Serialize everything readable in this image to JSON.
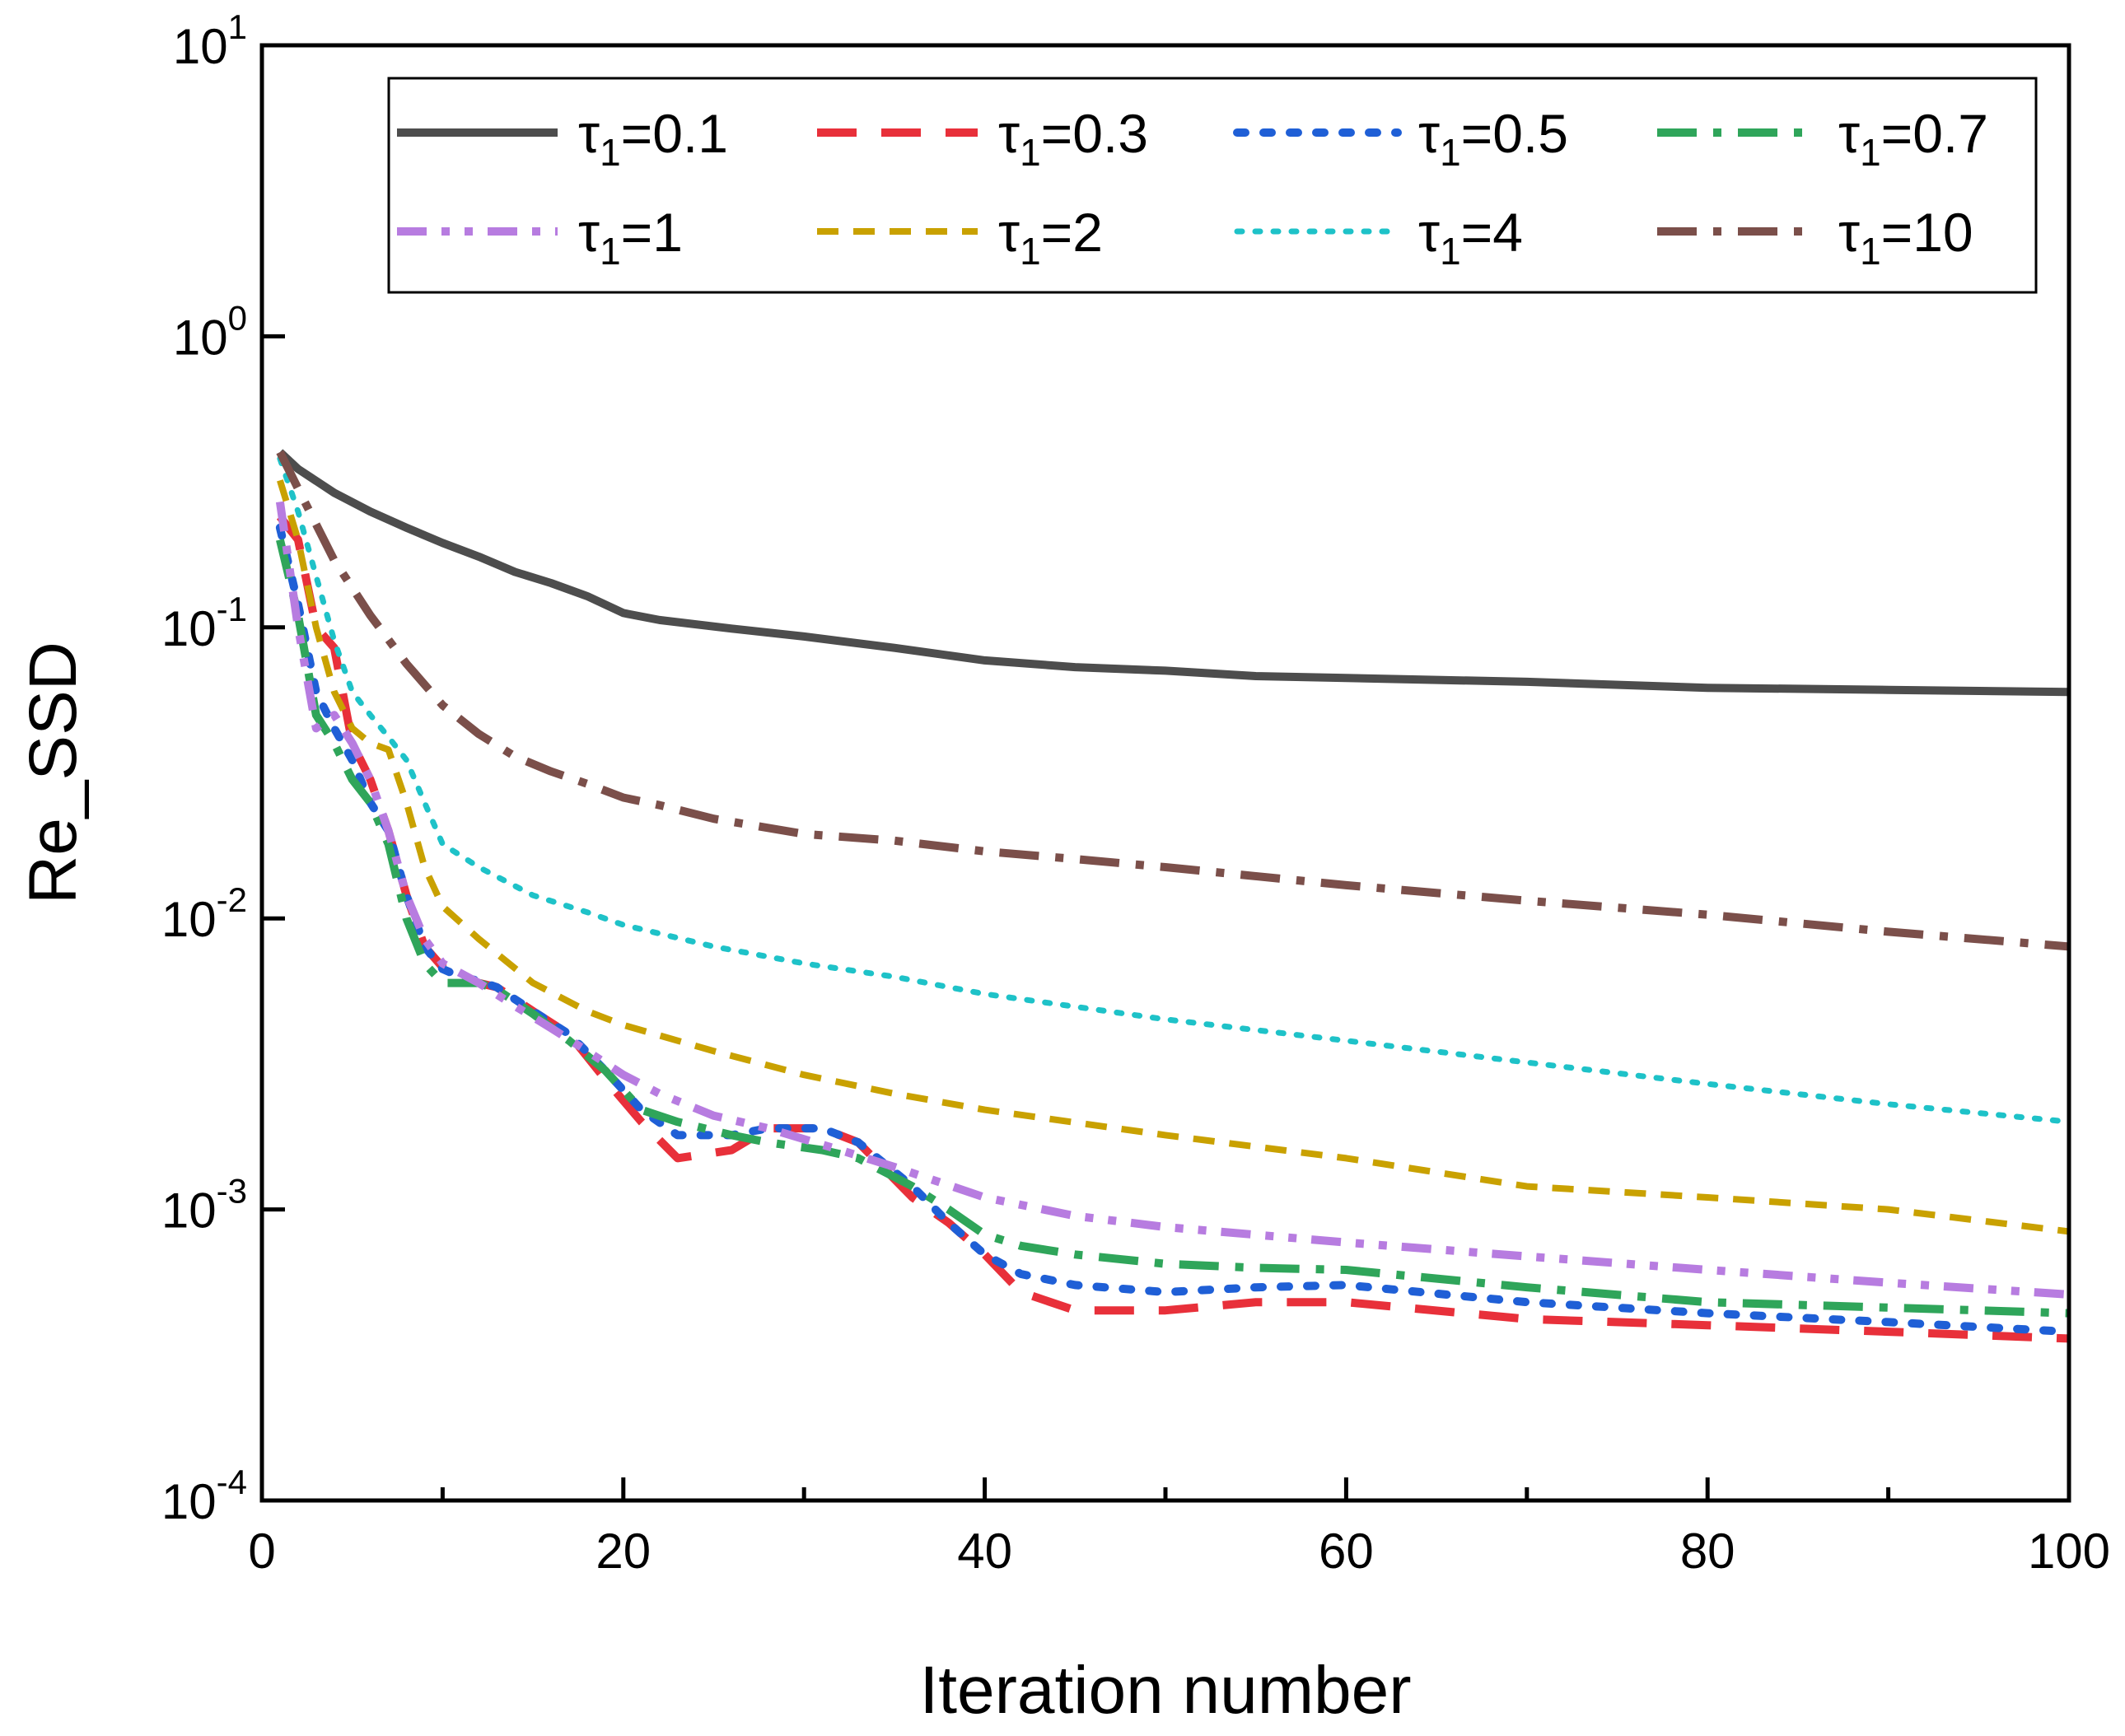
{
  "chart_data": {
    "type": "line",
    "title": "",
    "xlabel": "Iteration number",
    "ylabel": "Re_SSD",
    "xlim": [
      0,
      100
    ],
    "ylim": [
      0.0001,
      10
    ],
    "yscale": "log",
    "xticks": [
      0,
      20,
      40,
      60,
      80,
      100
    ],
    "xtick_labels": [
      "0",
      "20",
      "40",
      "60",
      "80",
      "100"
    ],
    "yticks": [
      {
        "value": 10,
        "base": "10",
        "exp": "1"
      },
      {
        "value": 1,
        "base": "10",
        "exp": "0"
      },
      {
        "value": 0.1,
        "base": "10",
        "exp": "-1"
      },
      {
        "value": 0.01,
        "base": "10",
        "exp": "-2"
      },
      {
        "value": 0.001,
        "base": "10",
        "exp": "-3"
      },
      {
        "value": 0.0001,
        "base": "10",
        "exp": "-4"
      }
    ],
    "legend": {
      "position": "top",
      "columns": 4,
      "symbol": "τ",
      "subscript": "1"
    },
    "series": [
      {
        "name": "τ1=0.1",
        "value_label": "=0.1",
        "color": "#4d4d4d",
        "style": "solid",
        "x": [
          1,
          2,
          4,
          6,
          8,
          10,
          12,
          14,
          16,
          18,
          20,
          22,
          26,
          30,
          35,
          40,
          45,
          50,
          55,
          60,
          70,
          80,
          90,
          100
        ],
        "y": [
          0.4,
          0.35,
          0.29,
          0.25,
          0.22,
          0.195,
          0.175,
          0.155,
          0.142,
          0.128,
          0.112,
          0.106,
          0.099,
          0.093,
          0.085,
          0.077,
          0.073,
          0.071,
          0.068,
          0.067,
          0.065,
          0.062,
          0.061,
          0.06
        ]
      },
      {
        "name": "τ1=0.3",
        "value_label": "=0.3",
        "color": "#e8303a",
        "style": "dash",
        "x": [
          1,
          2,
          3,
          4,
          5,
          6,
          7,
          8,
          9,
          10,
          11,
          12,
          13,
          15,
          17,
          19,
          21,
          23,
          26,
          28,
          31,
          33,
          36,
          38,
          40,
          42,
          45,
          50,
          55,
          60,
          70,
          80,
          90,
          100
        ],
        "y": [
          0.24,
          0.2,
          0.1,
          0.085,
          0.04,
          0.03,
          0.02,
          0.012,
          0.008,
          0.0068,
          0.0062,
          0.006,
          0.0058,
          0.0048,
          0.004,
          0.0028,
          0.002,
          0.0015,
          0.0016,
          0.0019,
          0.0019,
          0.0017,
          0.0011,
          0.0009,
          0.0007,
          0.00052,
          0.00045,
          0.00045,
          0.00048,
          0.00048,
          0.00042,
          0.0004,
          0.00038,
          0.00036
        ]
      },
      {
        "name": "τ1=0.5",
        "value_label": "=0.5",
        "color": "#1f5fd6",
        "style": "dot",
        "x": [
          1,
          2,
          3,
          4,
          5,
          6,
          7,
          8,
          9,
          10,
          11,
          12,
          13,
          15,
          17,
          19,
          21,
          23,
          26,
          28,
          31,
          33,
          36,
          38,
          40,
          42,
          45,
          50,
          55,
          60,
          70,
          80,
          90,
          100
        ],
        "y": [
          0.22,
          0.12,
          0.06,
          0.045,
          0.035,
          0.025,
          0.02,
          0.012,
          0.008,
          0.0067,
          0.0063,
          0.0061,
          0.0058,
          0.0048,
          0.004,
          0.003,
          0.0022,
          0.0018,
          0.0018,
          0.0019,
          0.0019,
          0.0017,
          0.0012,
          0.0009,
          0.0007,
          0.0006,
          0.00055,
          0.00052,
          0.00054,
          0.00055,
          0.00048,
          0.00044,
          0.00041,
          0.00038
        ]
      },
      {
        "name": "τ1=0.7",
        "value_label": "=0.7",
        "color": "#2fa55a",
        "style": "dashdot",
        "x": [
          1,
          2,
          3,
          4,
          5,
          6,
          7,
          8,
          9,
          10,
          11,
          12,
          13,
          15,
          17,
          19,
          21,
          23,
          26,
          28,
          31,
          33,
          36,
          38,
          40,
          42,
          45,
          50,
          55,
          60,
          70,
          80,
          90,
          100
        ],
        "y": [
          0.2,
          0.11,
          0.05,
          0.04,
          0.03,
          0.025,
          0.018,
          0.01,
          0.007,
          0.006,
          0.006,
          0.006,
          0.0057,
          0.0047,
          0.0038,
          0.003,
          0.0022,
          0.002,
          0.0018,
          0.0017,
          0.0016,
          0.0015,
          0.0012,
          0.001,
          0.00082,
          0.00075,
          0.0007,
          0.00065,
          0.00063,
          0.00062,
          0.00054,
          0.00048,
          0.00046,
          0.00044
        ]
      },
      {
        "name": "τ1=1",
        "value_label": "=1",
        "color": "#b77ce0",
        "style": "dashdotdot",
        "x": [
          1,
          2,
          3,
          4,
          5,
          6,
          7,
          8,
          9,
          10,
          12,
          14,
          16,
          18,
          20,
          22,
          25,
          28,
          32,
          35,
          40,
          45,
          50,
          60,
          70,
          80,
          90,
          100
        ],
        "y": [
          0.27,
          0.1,
          0.045,
          0.05,
          0.04,
          0.03,
          0.02,
          0.012,
          0.0085,
          0.007,
          0.006,
          0.005,
          0.0042,
          0.0035,
          0.0029,
          0.0025,
          0.0021,
          0.0019,
          0.0016,
          0.0014,
          0.0011,
          0.00095,
          0.00087,
          0.00077,
          0.00069,
          0.00062,
          0.00056,
          0.00051
        ]
      },
      {
        "name": "τ1=2",
        "value_label": "=2",
        "color": "#c9a100",
        "style": "shortdash",
        "x": [
          1,
          2,
          3,
          4,
          5,
          6,
          7,
          8,
          9,
          10,
          12,
          15,
          18,
          20,
          25,
          30,
          35,
          40,
          50,
          60,
          70,
          80,
          90,
          100
        ],
        "y": [
          0.32,
          0.2,
          0.1,
          0.06,
          0.045,
          0.04,
          0.038,
          0.025,
          0.015,
          0.011,
          0.0085,
          0.006,
          0.0048,
          0.0043,
          0.0035,
          0.0029,
          0.0025,
          0.0022,
          0.0018,
          0.0015,
          0.0012,
          0.0011,
          0.001,
          0.00084
        ]
      },
      {
        "name": "τ1=4",
        "value_label": "=4",
        "color": "#1ec2c8",
        "style": "fine",
        "x": [
          1,
          2,
          3,
          4,
          5,
          6,
          7,
          8,
          9,
          10,
          12,
          15,
          18,
          20,
          25,
          30,
          35,
          40,
          50,
          60,
          70,
          80,
          90,
          100
        ],
        "y": [
          0.38,
          0.25,
          0.15,
          0.09,
          0.06,
          0.05,
          0.042,
          0.035,
          0.025,
          0.018,
          0.015,
          0.012,
          0.0105,
          0.0095,
          0.008,
          0.007,
          0.0063,
          0.0055,
          0.0045,
          0.0038,
          0.0032,
          0.0027,
          0.0023,
          0.002
        ]
      },
      {
        "name": "τ1=10",
        "value_label": "=10",
        "color": "#7b4f4a",
        "style": "dashdot",
        "x": [
          1,
          2,
          4,
          6,
          8,
          10,
          12,
          14,
          16,
          18,
          20,
          22,
          25,
          30,
          35,
          40,
          45,
          50,
          60,
          70,
          80,
          90,
          100
        ],
        "y": [
          0.4,
          0.3,
          0.17,
          0.11,
          0.075,
          0.054,
          0.043,
          0.036,
          0.032,
          0.029,
          0.026,
          0.0245,
          0.022,
          0.0195,
          0.0185,
          0.017,
          0.016,
          0.015,
          0.013,
          0.0115,
          0.0103,
          0.009,
          0.008
        ]
      }
    ]
  }
}
